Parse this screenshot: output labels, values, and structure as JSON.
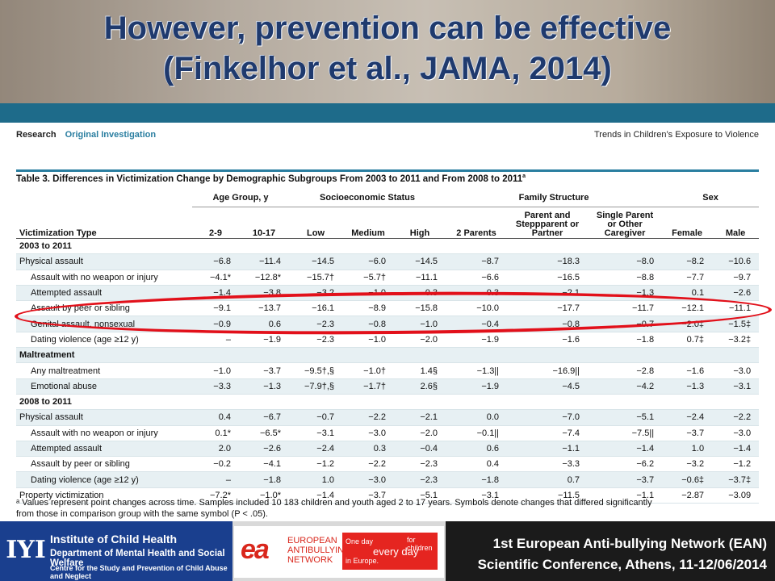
{
  "slide": {
    "title_line1": "However, prevention can be effective",
    "title_line2": "(Finkelhor et al., JAMA, 2014)"
  },
  "article": {
    "section": "Research",
    "subsection": "Original Investigation",
    "running_title": "Trends in Children’s Exposure to Violence",
    "table_title": "Table 3. Differences in Victimization Change by Demographic Subgroups From 2003 to 2011 and From 2008 to 2011",
    "table_title_sup": "a",
    "groups": {
      "age": "Age Group, y",
      "ses": "Socioeconomic Status",
      "family": "Family Structure",
      "sex": "Sex"
    },
    "columns": [
      "Victimization Type",
      "2-9",
      "10-17",
      "Low",
      "Medium",
      "High",
      "2 Parents",
      "Parent and Steppparent or Partner",
      "Single Parent or Other Caregiver",
      "Female",
      "Male"
    ],
    "rows": [
      {
        "type": "section",
        "label": "2003 to 2011"
      },
      {
        "type": "data",
        "label": "Physical assault",
        "indent": false,
        "v": [
          "−6.8",
          "−11.4",
          "−14.5",
          "−6.0",
          "−14.5",
          "−8.7",
          "−18.3",
          "−8.0",
          "−8.2",
          "−10.6"
        ]
      },
      {
        "type": "data",
        "label": "Assault with no weapon or injury",
        "indent": true,
        "v": [
          "−4.1*",
          "−12.8*",
          "−15.7†",
          "−5.7†",
          "−11.1",
          "−6.6",
          "−16.5",
          "−8.8",
          "−7.7",
          "−9.7"
        ]
      },
      {
        "type": "data",
        "label": "Attempted assault",
        "indent": true,
        "v": [
          "−1.4",
          "−3.8",
          "−3.2",
          "−1.0",
          "−0.3",
          "−0.3",
          "−2.1",
          "−1.3",
          "0.1",
          "−2.6"
        ]
      },
      {
        "type": "data",
        "label": "Assault by peer or sibling",
        "indent": true,
        "v": [
          "−9.1",
          "−13.7",
          "−16.1",
          "−8.9",
          "−15.8",
          "−10.0",
          "−17.7",
          "−11.7",
          "−12.1",
          "−11.1"
        ]
      },
      {
        "type": "data",
        "label": "Genital assault, nonsexual",
        "indent": true,
        "v": [
          "−0.9",
          "0.6",
          "−2.3",
          "−0.8",
          "−1.0",
          "−0.4",
          "−0.8",
          "−0.7",
          "−2.0‡",
          "−1.5‡"
        ]
      },
      {
        "type": "data",
        "label": "Dating violence (age ≥12 y)",
        "indent": true,
        "v": [
          "–",
          "−1.9",
          "−2.3",
          "−1.0",
          "−2.0",
          "−1.9",
          "−1.6",
          "−1.8",
          "0.7‡",
          "−3.2‡"
        ]
      },
      {
        "type": "section",
        "label": "Maltreatment"
      },
      {
        "type": "data",
        "label": "Any maltreatment",
        "indent": true,
        "v": [
          "−1.0",
          "−3.7",
          "−9.5†,§",
          "−1.0†",
          "1.4§",
          "−1.3||",
          "−16.9||",
          "−2.8",
          "−1.6",
          "−3.0"
        ]
      },
      {
        "type": "data",
        "label": "Emotional abuse",
        "indent": true,
        "v": [
          "−3.3",
          "−1.3",
          "−7.9†,§",
          "−1.7†",
          "2.6§",
          "−1.9",
          "−4.5",
          "−4.2",
          "−1.3",
          "−3.1"
        ]
      },
      {
        "type": "section",
        "label": "2008 to 2011"
      },
      {
        "type": "data",
        "label": "Physical assault",
        "indent": false,
        "v": [
          "0.4",
          "−6.7",
          "−0.7",
          "−2.2",
          "−2.1",
          "0.0",
          "−7.0",
          "−5.1",
          "−2.4",
          "−2.2"
        ]
      },
      {
        "type": "data",
        "label": "Assault with no weapon or injury",
        "indent": true,
        "v": [
          "0.1*",
          "−6.5*",
          "−3.1",
          "−3.0",
          "−2.0",
          "−0.1||",
          "−7.4",
          "−7.5||",
          "−3.7",
          "−3.0"
        ]
      },
      {
        "type": "data",
        "label": "Attempted assault",
        "indent": true,
        "v": [
          "2.0",
          "−2.6",
          "−2.4",
          "0.3",
          "−0.4",
          "0.6",
          "−1.1",
          "−1.4",
          "1.0",
          "−1.4"
        ]
      },
      {
        "type": "data",
        "label": "Assault by peer or sibling",
        "indent": true,
        "v": [
          "−0.2",
          "−4.1",
          "−1.2",
          "−2.2",
          "−2.3",
          "0.4",
          "−3.3",
          "−6.2",
          "−3.2",
          "−1.2"
        ]
      },
      {
        "type": "data",
        "label": "Dating violence (age ≥12 y)",
        "indent": true,
        "v": [
          "–",
          "−1.8",
          "1.0",
          "−3.0",
          "−2.3",
          "−1.8",
          "0.7",
          "−3.7",
          "−0.6‡",
          "−3.7‡"
        ]
      },
      {
        "type": "data",
        "label": "Property victimization",
        "indent": false,
        "v": [
          "−7.2*",
          "−1.0*",
          "−1.4",
          "−3.7",
          "−5.1",
          "−3.1",
          "−11.5",
          "−1.1",
          "−2.87",
          "−3.09"
        ]
      }
    ],
    "footnote_line1": "ᵃ Values represent point changes across time. Samples included 10 183 children and youth aged 2 to 17 years. Symbols denote changes that differed significantly",
    "footnote_line2": "from those in comparison group with the same symbol (P < .05)."
  },
  "footer": {
    "ich_logo": "IYI",
    "ich_line1": "Institute of Child Health",
    "ich_line2": "Department of Mental Health and Social Welfare",
    "ich_line3": "Centre for the Study and Prevention of Child Abuse and Neglect",
    "ean_logo": "ea",
    "ean_text": [
      "EUROPEAN",
      "ANTIBULLYING",
      "NETWORK"
    ],
    "ean_slogan": {
      "a": "One day",
      "b": "every",
      "c": "day",
      "d": "for children",
      "e": "in Europe."
    },
    "conf_line1": "1st European Anti-bullying Network (EAN)",
    "conf_line2": "Scientific Conference, Athens, 11-12/06/2014"
  },
  "colors": {
    "title": "#1f3a6e",
    "accent": "#2a7ea0",
    "highlight_oval": "#e2101a"
  }
}
